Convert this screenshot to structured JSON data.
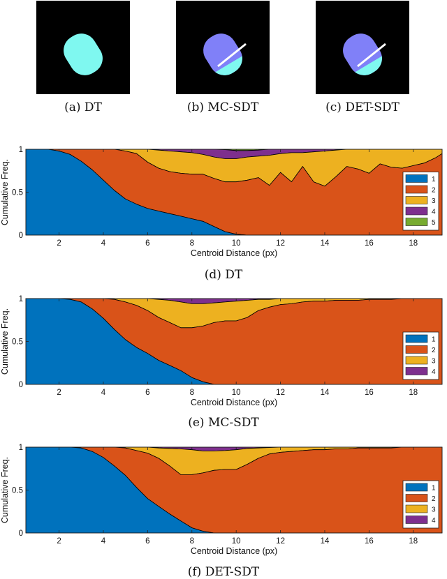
{
  "figure": {
    "panels": [
      {
        "caption": "(a) DT",
        "style": "single"
      },
      {
        "caption": "(b) MC-SDT",
        "style": "split"
      },
      {
        "caption": "(c) DET-SDT",
        "style": "split"
      }
    ],
    "chart_captions": [
      "(d) DT",
      "(e) MC-SDT",
      "(f) DET-SDT"
    ],
    "colors": {
      "cyan": "#7ff8f0",
      "violet": "#8080f8",
      "black": "#000000"
    }
  },
  "chart_data": [
    {
      "type": "area",
      "title": "(d) DT",
      "xlabel": "Centroid Distance (px)",
      "ylabel": "Cumulative Freq.",
      "xlim": [
        0.5,
        19.3
      ],
      "ylim": [
        0,
        1
      ],
      "xticks": [
        2,
        4,
        6,
        8,
        10,
        12,
        14,
        16,
        18
      ],
      "yticks": [
        0,
        0.5,
        1
      ],
      "ytick_labels": [
        "0",
        "0.5",
        "1"
      ],
      "legend_position": "right",
      "x": [
        0.5,
        1,
        1.5,
        2,
        2.5,
        3,
        3.5,
        4,
        4.5,
        5,
        5.5,
        6,
        6.5,
        7,
        7.5,
        8,
        8.5,
        9,
        9.5,
        10,
        10.5,
        11,
        11.5,
        12,
        12.5,
        13,
        13.5,
        14,
        14.5,
        15,
        15.5,
        16,
        16.5,
        17,
        17.5,
        18,
        18.5,
        19,
        19.3
      ],
      "series": [
        {
          "name": "1",
          "color": "#0072bd",
          "values": [
            1,
            1,
            1,
            0.98,
            0.94,
            0.86,
            0.76,
            0.64,
            0.52,
            0.42,
            0.36,
            0.31,
            0.28,
            0.25,
            0.22,
            0.19,
            0.16,
            0.1,
            0.04,
            0.01,
            0,
            0,
            0,
            0,
            0,
            0,
            0,
            0,
            0,
            0,
            0,
            0,
            0,
            0,
            0,
            0,
            0,
            0,
            0
          ]
        },
        {
          "name": "2",
          "color": "#d95319",
          "values": [
            1,
            1,
            1,
            1,
            1,
            1,
            1,
            1,
            1,
            0.98,
            0.95,
            0.85,
            0.78,
            0.74,
            0.72,
            0.71,
            0.71,
            0.66,
            0.62,
            0.62,
            0.64,
            0.67,
            0.58,
            0.73,
            0.62,
            0.8,
            0.62,
            0.57,
            0.68,
            0.8,
            0.77,
            0.72,
            0.83,
            0.79,
            0.78,
            0.81,
            0.84,
            0.9,
            0.95
          ]
        },
        {
          "name": "3",
          "color": "#edb120",
          "values": [
            1,
            1,
            1,
            1,
            1,
            1,
            1,
            1,
            1,
            1,
            1,
            1,
            0.99,
            0.98,
            0.97,
            0.96,
            0.94,
            0.91,
            0.89,
            0.89,
            0.91,
            0.92,
            0.93,
            0.95,
            0.96,
            0.96,
            0.97,
            0.98,
            0.99,
            1,
            1,
            1,
            1,
            1,
            1,
            1,
            1,
            1,
            1
          ]
        },
        {
          "name": "4",
          "color": "#7e2f8e",
          "values": [
            1,
            1,
            1,
            1,
            1,
            1,
            1,
            1,
            1,
            1,
            1,
            1,
            1,
            1,
            1,
            1,
            1,
            1,
            0.995,
            0.985,
            0.985,
            0.99,
            1,
            1,
            1,
            1,
            1,
            1,
            1,
            1,
            1,
            1,
            1,
            1,
            1,
            1,
            1,
            1,
            1
          ]
        },
        {
          "name": "5",
          "color": "#77ac30",
          "values": [
            1,
            1,
            1,
            1,
            1,
            1,
            1,
            1,
            1,
            1,
            1,
            1,
            1,
            1,
            1,
            1,
            1,
            1,
            1,
            1,
            1,
            1,
            1,
            1,
            1,
            1,
            1,
            1,
            1,
            1,
            1,
            1,
            1,
            1,
            1,
            1,
            1,
            1,
            1
          ]
        }
      ]
    },
    {
      "type": "area",
      "title": "(e) MC-SDT",
      "xlabel": "Centroid Distance (px)",
      "ylabel": "Cumulative Freq.",
      "xlim": [
        0.5,
        19.3
      ],
      "ylim": [
        0,
        1
      ],
      "xticks": [
        2,
        4,
        6,
        8,
        10,
        12,
        14,
        16,
        18
      ],
      "yticks": [
        0,
        0.5,
        1
      ],
      "ytick_labels": [
        "0",
        "0.5",
        "1"
      ],
      "legend_position": "right",
      "x": [
        0.5,
        1,
        1.5,
        2,
        2.5,
        3,
        3.5,
        4,
        4.5,
        5,
        5.5,
        6,
        6.5,
        7,
        7.5,
        8,
        8.5,
        9,
        9.5,
        10,
        10.5,
        11,
        11.5,
        12,
        12.5,
        13,
        13.5,
        14,
        14.5,
        15,
        15.5,
        16,
        16.5,
        17,
        17.5,
        18,
        18.5,
        19,
        19.3
      ],
      "series": [
        {
          "name": "1",
          "color": "#0072bd",
          "values": [
            1,
            1,
            1,
            1,
            0.99,
            0.96,
            0.88,
            0.77,
            0.64,
            0.52,
            0.43,
            0.36,
            0.28,
            0.22,
            0.16,
            0.08,
            0.03,
            0,
            0,
            0,
            0,
            0,
            0,
            0,
            0,
            0,
            0,
            0,
            0,
            0,
            0,
            0,
            0,
            0,
            0,
            0,
            0,
            0,
            0
          ]
        },
        {
          "name": "2",
          "color": "#d95319",
          "values": [
            1,
            1,
            1,
            1,
            1,
            1,
            1,
            1,
            0.99,
            0.96,
            0.92,
            0.86,
            0.78,
            0.72,
            0.66,
            0.66,
            0.68,
            0.72,
            0.74,
            0.74,
            0.78,
            0.86,
            0.9,
            0.93,
            0.94,
            0.96,
            0.97,
            0.97,
            0.98,
            0.98,
            0.98,
            0.99,
            0.99,
            0.99,
            1,
            1,
            1,
            1,
            1
          ]
        },
        {
          "name": "3",
          "color": "#edb120",
          "values": [
            1,
            1,
            1,
            1,
            1,
            1,
            1,
            1,
            1,
            1,
            1,
            1,
            0.99,
            0.98,
            0.96,
            0.94,
            0.94,
            0.95,
            0.96,
            0.97,
            0.98,
            0.99,
            0.99,
            1,
            1,
            1,
            1,
            1,
            1,
            1,
            1,
            1,
            1,
            1,
            1,
            1,
            1,
            1,
            1
          ]
        },
        {
          "name": "4",
          "color": "#7e2f8e",
          "values": [
            1,
            1,
            1,
            1,
            1,
            1,
            1,
            1,
            1,
            1,
            1,
            1,
            1,
            1,
            1,
            1,
            1,
            1,
            1,
            1,
            1,
            1,
            1,
            1,
            1,
            1,
            1,
            1,
            1,
            1,
            1,
            1,
            1,
            1,
            1,
            1,
            1,
            1,
            1
          ]
        }
      ]
    },
    {
      "type": "area",
      "title": "(f) DET-SDT",
      "xlabel": "Centroid Distance (px)",
      "ylabel": "Cumulative Freq.",
      "xlim": [
        0.5,
        19.3
      ],
      "ylim": [
        0,
        1
      ],
      "xticks": [
        2,
        4,
        6,
        8,
        10,
        12,
        14,
        16,
        18
      ],
      "yticks": [
        0,
        0.5,
        1
      ],
      "ytick_labels": [
        "0",
        "0.5",
        "1"
      ],
      "legend_position": "right",
      "x": [
        0.5,
        1,
        1.5,
        2,
        2.5,
        3,
        3.5,
        4,
        4.5,
        5,
        5.5,
        6,
        6.5,
        7,
        7.5,
        8,
        8.5,
        9,
        9.5,
        10,
        10.5,
        11,
        11.5,
        12,
        12.5,
        13,
        13.5,
        14,
        14.5,
        15,
        15.5,
        16,
        16.5,
        17,
        17.5,
        18,
        18.5,
        19,
        19.3
      ],
      "series": [
        {
          "name": "1",
          "color": "#0072bd",
          "values": [
            1,
            1,
            1,
            1,
            1,
            0.99,
            0.95,
            0.88,
            0.78,
            0.67,
            0.53,
            0.4,
            0.31,
            0.22,
            0.14,
            0.06,
            0.02,
            0,
            0,
            0,
            0,
            0,
            0,
            0,
            0,
            0,
            0,
            0,
            0,
            0,
            0,
            0,
            0,
            0,
            0,
            0,
            0,
            0,
            0
          ]
        },
        {
          "name": "2",
          "color": "#d95319",
          "values": [
            1,
            1,
            1,
            1,
            1,
            1,
            1,
            1,
            1,
            0.99,
            0.96,
            0.93,
            0.87,
            0.78,
            0.68,
            0.68,
            0.7,
            0.73,
            0.74,
            0.74,
            0.8,
            0.87,
            0.92,
            0.94,
            0.95,
            0.96,
            0.97,
            0.97,
            0.98,
            0.98,
            0.99,
            0.99,
            0.99,
            0.99,
            1,
            1,
            1,
            1,
            1
          ]
        },
        {
          "name": "3",
          "color": "#edb120",
          "values": [
            1,
            1,
            1,
            1,
            1,
            1,
            1,
            1,
            1,
            1,
            1,
            1,
            0.99,
            0.985,
            0.98,
            0.97,
            0.955,
            0.955,
            0.96,
            0.97,
            0.985,
            0.99,
            0.995,
            1,
            1,
            1,
            1,
            1,
            1,
            1,
            1,
            1,
            1,
            1,
            1,
            1,
            1,
            1,
            1
          ]
        },
        {
          "name": "4",
          "color": "#7e2f8e",
          "values": [
            1,
            1,
            1,
            1,
            1,
            1,
            1,
            1,
            1,
            1,
            1,
            1,
            1,
            1,
            1,
            1,
            1,
            1,
            1,
            1,
            1,
            1,
            1,
            1,
            1,
            1,
            1,
            1,
            1,
            1,
            1,
            1,
            1,
            1,
            1,
            1,
            1,
            1,
            1
          ]
        }
      ]
    }
  ]
}
